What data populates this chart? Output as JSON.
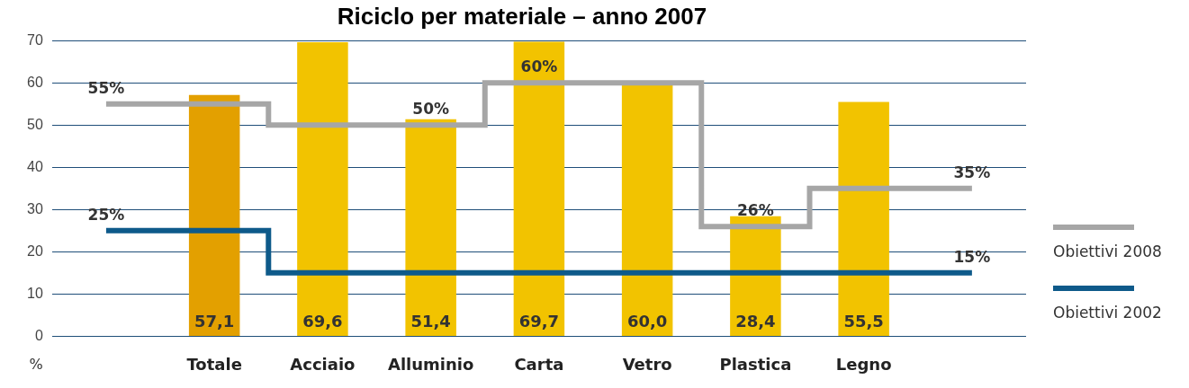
{
  "chart_data": {
    "type": "bar",
    "title": "Riciclo per materiale – anno 2007",
    "ylabel": "%",
    "categories": [
      null,
      "Totale",
      "Acciaio",
      "Alluminio",
      "Carta",
      "Vetro",
      "Plastica",
      "Legno",
      null
    ],
    "series": [
      {
        "colors": [
          null,
          "#e3a000",
          "#f2c300",
          "#f2c300",
          "#f2c300",
          "#f2c300",
          "#f2c300",
          "#f2c300",
          null
        ],
        "values": [
          null,
          57.1,
          69.6,
          51.4,
          69.7,
          60.0,
          28.4,
          55.5,
          null
        ],
        "value_labels": [
          null,
          "57,1",
          "69,6",
          "51,4",
          "69,7",
          "60,0",
          "28,4",
          "55,5",
          null
        ]
      },
      {
        "type": "step",
        "name": "Obiettivi 2008",
        "color": "#a6a6a6",
        "values": [
          55,
          55,
          50,
          50,
          60,
          60,
          26,
          35,
          35
        ],
        "value_labels": [
          "55%",
          null,
          null,
          "50%",
          "60%",
          null,
          "26%",
          null,
          "35%"
        ]
      },
      {
        "type": "step",
        "name": "Obiettivi 2002",
        "color": "#0e5a8a",
        "values": [
          25,
          25,
          15,
          15,
          15,
          15,
          15,
          15,
          15
        ],
        "value_labels": [
          "25%",
          null,
          null,
          null,
          null,
          null,
          null,
          null,
          "15%"
        ]
      }
    ],
    "ylim": [
      0,
      70
    ],
    "yticks": [
      0,
      10,
      20,
      30,
      40,
      50,
      60,
      70
    ],
    "grid": "y",
    "legend": "right"
  }
}
